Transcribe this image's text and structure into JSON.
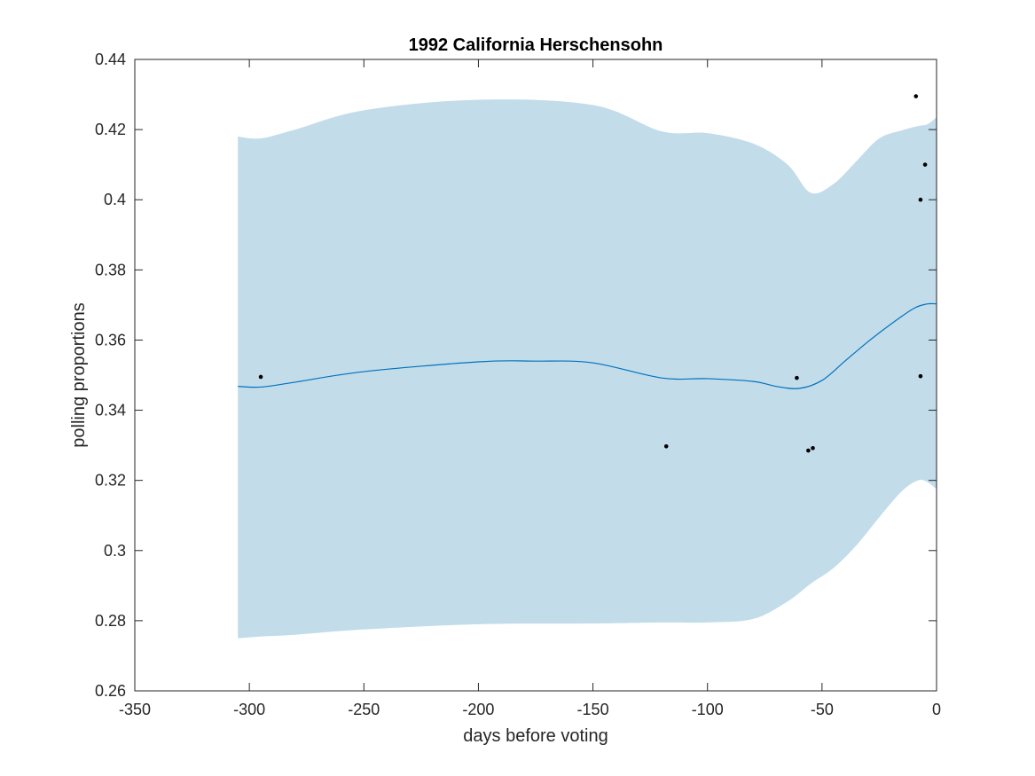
{
  "chart_data": {
    "type": "line",
    "title": "1992 California Herschensohn",
    "xlabel": "days before voting",
    "ylabel": "polling proportions",
    "xlim": [
      -350,
      0
    ],
    "ylim": [
      0.26,
      0.44
    ],
    "xticks": [
      -350,
      -300,
      -250,
      -200,
      -150,
      -100,
      -50,
      0
    ],
    "xtick_labels": [
      "-350",
      "-300",
      "-250",
      "-200",
      "-150",
      "-100",
      "-50",
      "0"
    ],
    "yticks": [
      0.26,
      0.28,
      0.3,
      0.32,
      0.34,
      0.36,
      0.38,
      0.4,
      0.42,
      0.44
    ],
    "ytick_labels": [
      "0.26",
      "0.28",
      "0.3",
      "0.32",
      "0.34",
      "0.36",
      "0.38",
      "0.4",
      "0.42",
      "0.44"
    ],
    "grid": false,
    "colors": {
      "band": "#c2dcea",
      "line": "#0072bd",
      "points": "#000000",
      "axes": "#262626"
    },
    "band": {
      "x": [
        -305,
        -295,
        -280,
        -250,
        -200,
        -150,
        -120,
        -100,
        -80,
        -65,
        -55,
        -45,
        -35,
        -25,
        -15,
        -8,
        -4,
        0
      ],
      "upper": [
        0.418,
        0.4175,
        0.42,
        0.4255,
        0.4285,
        0.427,
        0.4195,
        0.419,
        0.416,
        0.41,
        0.402,
        0.4045,
        0.411,
        0.4175,
        0.4198,
        0.421,
        0.4215,
        0.4235
      ],
      "lower": [
        0.275,
        0.2755,
        0.276,
        0.2775,
        0.279,
        0.2792,
        0.2795,
        0.2795,
        0.2805,
        0.2855,
        0.2905,
        0.295,
        0.3015,
        0.3095,
        0.317,
        0.32,
        0.3195,
        0.3175
      ]
    },
    "series": [
      {
        "x": [
          -305,
          -295,
          -280,
          -250,
          -200,
          -175,
          -150,
          -120,
          -100,
          -80,
          -70,
          -60,
          -50,
          -40,
          -30,
          -20,
          -10,
          -4,
          0
        ],
        "y": [
          0.3468,
          0.3466,
          0.348,
          0.351,
          0.3538,
          0.354,
          0.3535,
          0.3492,
          0.349,
          0.3482,
          0.3468,
          0.3462,
          0.3485,
          0.354,
          0.3595,
          0.3645,
          0.369,
          0.3703,
          0.3703
        ]
      }
    ],
    "points": {
      "x": [
        -295,
        -118,
        -61,
        -56,
        -54,
        -9,
        -7,
        -7,
        -5
      ],
      "y": [
        0.3495,
        0.3297,
        0.3492,
        0.3285,
        0.3292,
        0.4295,
        0.3497,
        0.4,
        0.41
      ]
    }
  }
}
